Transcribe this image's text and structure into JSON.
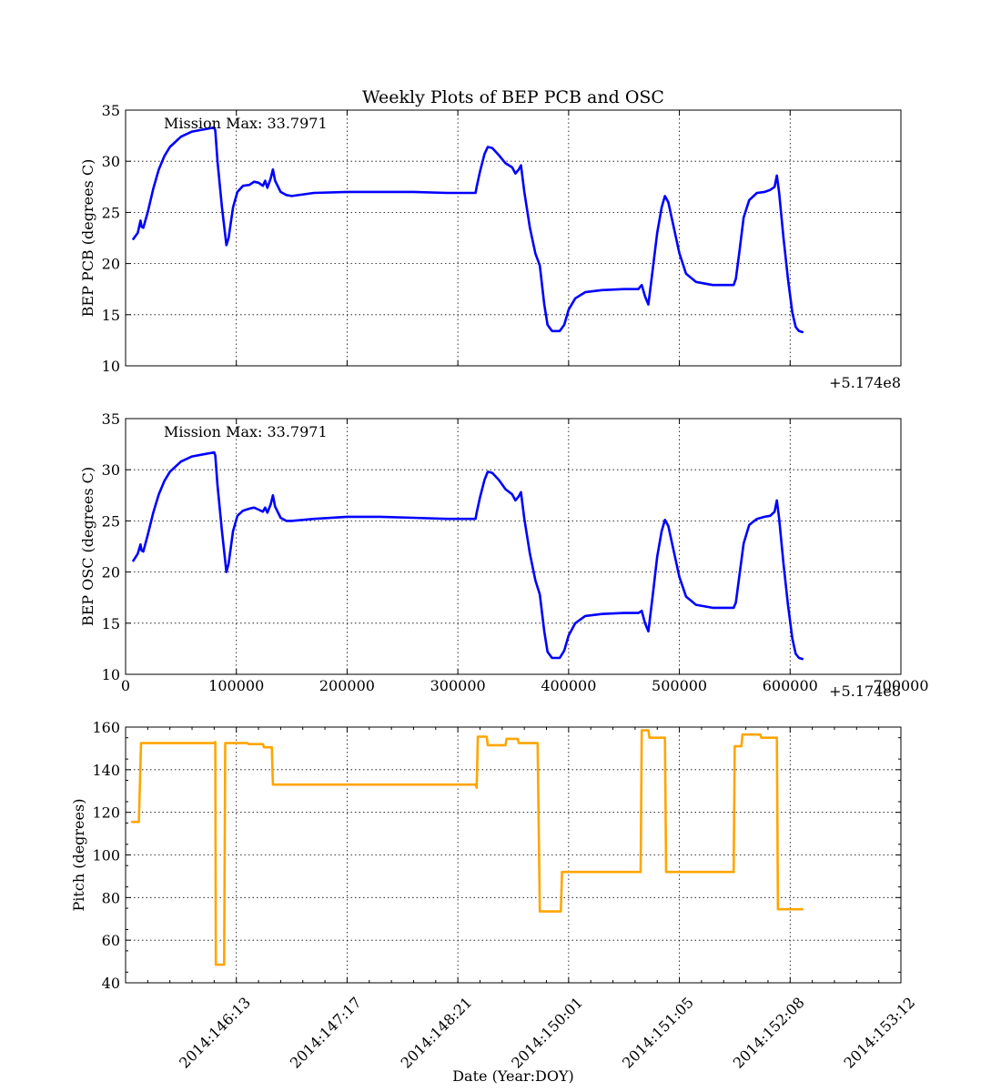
{
  "title": "Weekly Plots of BEP PCB and OSC",
  "chart_data": [
    {
      "type": "line",
      "ylabel": "BEP PCB (degrees C)",
      "xlim": [
        0,
        700000
      ],
      "ylim": [
        10,
        35
      ],
      "yticks": [
        10,
        15,
        20,
        25,
        30,
        35
      ],
      "xticks": [
        100000,
        200000,
        300000,
        400000,
        500000,
        600000
      ],
      "xtick_labels_shown": false,
      "offset_label": "+5.174e8",
      "annotation": "Mission Max: 33.7971",
      "grid": true,
      "color": "#0000ff",
      "series": [
        {
          "points": [
            [
              7000,
              22.4
            ],
            [
              11000,
              23.0
            ],
            [
              13500,
              24.2
            ],
            [
              14500,
              23.6
            ],
            [
              16000,
              23.5
            ],
            [
              20000,
              25.0
            ],
            [
              25000,
              27.3
            ],
            [
              30000,
              29.2
            ],
            [
              35000,
              30.5
            ],
            [
              40000,
              31.4
            ],
            [
              50000,
              32.4
            ],
            [
              60000,
              32.9
            ],
            [
              70000,
              33.1
            ],
            [
              80000,
              33.3
            ],
            [
              81000,
              33.0
            ],
            [
              83000,
              30.0
            ],
            [
              87000,
              25.5
            ],
            [
              91000,
              21.8
            ],
            [
              93000,
              22.5
            ],
            [
              97000,
              25.5
            ],
            [
              101000,
              27.0
            ],
            [
              106000,
              27.6
            ],
            [
              112000,
              27.7
            ],
            [
              116000,
              28.0
            ],
            [
              120000,
              27.9
            ],
            [
              124000,
              27.6
            ],
            [
              126000,
              28.1
            ],
            [
              128000,
              27.4
            ],
            [
              131000,
              28.3
            ],
            [
              133000,
              29.2
            ],
            [
              135000,
              28.1
            ],
            [
              140000,
              27.0
            ],
            [
              145000,
              26.7
            ],
            [
              150000,
              26.6
            ],
            [
              170000,
              26.9
            ],
            [
              200000,
              27.0
            ],
            [
              230000,
              27.0
            ],
            [
              260000,
              27.0
            ],
            [
              290000,
              26.9
            ],
            [
              316000,
              26.9
            ],
            [
              317000,
              27.5
            ],
            [
              320000,
              29.0
            ],
            [
              324000,
              30.7
            ],
            [
              327000,
              31.4
            ],
            [
              331000,
              31.3
            ],
            [
              337000,
              30.6
            ],
            [
              343000,
              29.8
            ],
            [
              349000,
              29.4
            ],
            [
              352000,
              28.8
            ],
            [
              355000,
              29.2
            ],
            [
              357000,
              29.6
            ],
            [
              360000,
              27.0
            ],
            [
              365000,
              23.5
            ],
            [
              370000,
              21.0
            ],
            [
              374000,
              19.8
            ],
            [
              378000,
              16.0
            ],
            [
              381000,
              14.0
            ],
            [
              385000,
              13.4
            ],
            [
              392000,
              13.4
            ],
            [
              396000,
              14.0
            ],
            [
              400000,
              15.5
            ],
            [
              406000,
              16.6
            ],
            [
              415000,
              17.2
            ],
            [
              430000,
              17.4
            ],
            [
              450000,
              17.5
            ],
            [
              463000,
              17.5
            ],
            [
              466000,
              17.9
            ],
            [
              469000,
              16.8
            ],
            [
              472000,
              16.0
            ],
            [
              476000,
              19.5
            ],
            [
              480000,
              23.0
            ],
            [
              484000,
              25.5
            ],
            [
              487000,
              26.6
            ],
            [
              490000,
              26.0
            ],
            [
              495000,
              23.5
            ],
            [
              500000,
              21.0
            ],
            [
              506000,
              19.0
            ],
            [
              515000,
              18.2
            ],
            [
              530000,
              17.9
            ],
            [
              549000,
              17.9
            ],
            [
              551000,
              18.5
            ],
            [
              554000,
              21.0
            ],
            [
              558000,
              24.5
            ],
            [
              563000,
              26.2
            ],
            [
              570000,
              26.9
            ],
            [
              577000,
              27.0
            ],
            [
              582000,
              27.2
            ],
            [
              586000,
              27.5
            ],
            [
              588000,
              28.6
            ],
            [
              590000,
              27.0
            ],
            [
              594000,
              22.5
            ],
            [
              598000,
              18.5
            ],
            [
              602000,
              15.2
            ],
            [
              605000,
              13.8
            ],
            [
              608000,
              13.4
            ],
            [
              611000,
              13.3
            ]
          ]
        }
      ]
    },
    {
      "type": "line",
      "ylabel": "BEP OSC (degrees C)",
      "xlim": [
        0,
        700000
      ],
      "ylim": [
        10,
        35
      ],
      "yticks": [
        10,
        15,
        20,
        25,
        30,
        35
      ],
      "xticks": [
        0,
        100000,
        200000,
        300000,
        400000,
        500000,
        600000,
        700000
      ],
      "xtick_labels": [
        "0",
        "100000",
        "200000",
        "300000",
        "400000",
        "500000",
        "600000",
        "700000"
      ],
      "offset_label": "+5.174e8",
      "annotation": "Mission Max: 33.7971",
      "grid": true,
      "color": "#0000ff",
      "series": [
        {
          "points": [
            [
              7000,
              21.1
            ],
            [
              11000,
              21.8
            ],
            [
              13500,
              22.7
            ],
            [
              14500,
              22.1
            ],
            [
              16000,
              22.0
            ],
            [
              20000,
              23.6
            ],
            [
              25000,
              25.8
            ],
            [
              30000,
              27.6
            ],
            [
              35000,
              28.9
            ],
            [
              40000,
              29.8
            ],
            [
              50000,
              30.8
            ],
            [
              60000,
              31.3
            ],
            [
              70000,
              31.5
            ],
            [
              80000,
              31.7
            ],
            [
              81000,
              31.4
            ],
            [
              83000,
              28.5
            ],
            [
              87000,
              24.0
            ],
            [
              91000,
              20.0
            ],
            [
              93000,
              20.8
            ],
            [
              97000,
              24.0
            ],
            [
              101000,
              25.5
            ],
            [
              106000,
              26.0
            ],
            [
              112000,
              26.2
            ],
            [
              116000,
              26.3
            ],
            [
              120000,
              26.1
            ],
            [
              124000,
              25.9
            ],
            [
              126000,
              26.3
            ],
            [
              128000,
              25.8
            ],
            [
              131000,
              26.6
            ],
            [
              133000,
              27.5
            ],
            [
              135000,
              26.4
            ],
            [
              140000,
              25.3
            ],
            [
              145000,
              25.0
            ],
            [
              150000,
              25.0
            ],
            [
              170000,
              25.2
            ],
            [
              200000,
              25.4
            ],
            [
              230000,
              25.4
            ],
            [
              260000,
              25.3
            ],
            [
              290000,
              25.2
            ],
            [
              316000,
              25.2
            ],
            [
              317000,
              25.8
            ],
            [
              320000,
              27.3
            ],
            [
              324000,
              29.0
            ],
            [
              327000,
              29.8
            ],
            [
              331000,
              29.7
            ],
            [
              337000,
              29.0
            ],
            [
              343000,
              28.1
            ],
            [
              349000,
              27.6
            ],
            [
              352000,
              27.0
            ],
            [
              355000,
              27.4
            ],
            [
              357000,
              27.8
            ],
            [
              360000,
              25.2
            ],
            [
              365000,
              21.8
            ],
            [
              370000,
              19.2
            ],
            [
              374000,
              17.8
            ],
            [
              378000,
              14.2
            ],
            [
              381000,
              12.2
            ],
            [
              385000,
              11.6
            ],
            [
              392000,
              11.6
            ],
            [
              396000,
              12.3
            ],
            [
              400000,
              13.8
            ],
            [
              406000,
              15.0
            ],
            [
              415000,
              15.7
            ],
            [
              430000,
              15.9
            ],
            [
              450000,
              16.0
            ],
            [
              463000,
              16.0
            ],
            [
              466000,
              16.2
            ],
            [
              469000,
              15.0
            ],
            [
              472000,
              14.2
            ],
            [
              476000,
              17.8
            ],
            [
              480000,
              21.5
            ],
            [
              484000,
              24.0
            ],
            [
              487000,
              25.1
            ],
            [
              490000,
              24.5
            ],
            [
              495000,
              22.0
            ],
            [
              500000,
              19.5
            ],
            [
              506000,
              17.6
            ],
            [
              515000,
              16.8
            ],
            [
              530000,
              16.5
            ],
            [
              549000,
              16.5
            ],
            [
              551000,
              17.0
            ],
            [
              554000,
              19.5
            ],
            [
              558000,
              22.8
            ],
            [
              563000,
              24.6
            ],
            [
              570000,
              25.2
            ],
            [
              577000,
              25.4
            ],
            [
              582000,
              25.5
            ],
            [
              586000,
              25.9
            ],
            [
              588000,
              27.0
            ],
            [
              590000,
              25.3
            ],
            [
              594000,
              20.8
            ],
            [
              598000,
              16.8
            ],
            [
              602000,
              13.5
            ],
            [
              605000,
              12.0
            ],
            [
              608000,
              11.6
            ],
            [
              611000,
              11.5
            ]
          ]
        }
      ]
    },
    {
      "type": "line",
      "ylabel": "Pitch (degrees)",
      "xlabel": "Date (Year:DOY)",
      "xlim": [
        0,
        700000
      ],
      "ylim": [
        40,
        160
      ],
      "yticks": [
        40,
        60,
        80,
        100,
        120,
        140,
        160
      ],
      "xticks": [
        100000,
        200000,
        300000,
        400000,
        500000,
        600000,
        700000
      ],
      "xtick_labels": [
        "2014:146:13",
        "2014:147:17",
        "2014:148:21",
        "2014:150:01",
        "2014:151:05",
        "2014:152:08",
        "2014:153:12"
      ],
      "grid": true,
      "color": "#ffa500",
      "series": [
        {
          "points": [
            [
              6000,
              115.5
            ],
            [
              12000,
              115.5
            ],
            [
              14000,
              152.5
            ],
            [
              80000,
              152.5
            ],
            [
              81000,
              153.0
            ],
            [
              81500,
              48.5
            ],
            [
              89000,
              48.5
            ],
            [
              90000,
              152.5
            ],
            [
              110000,
              152.5
            ],
            [
              111000,
              152.0
            ],
            [
              124000,
              152.0
            ],
            [
              125000,
              150.5
            ],
            [
              132000,
              150.5
            ],
            [
              133000,
              133.0
            ],
            [
              316000,
              133.0
            ],
            [
              317000,
              131.5
            ],
            [
              318000,
              155.5
            ],
            [
              326000,
              155.5
            ],
            [
              327000,
              151.5
            ],
            [
              343000,
              151.5
            ],
            [
              344000,
              154.5
            ],
            [
              354000,
              154.5
            ],
            [
              355000,
              152.5
            ],
            [
              372000,
              152.5
            ],
            [
              374000,
              73.5
            ],
            [
              393000,
              73.5
            ],
            [
              394000,
              92.0
            ],
            [
              465000,
              92.0
            ],
            [
              466000,
              158.5
            ],
            [
              472000,
              158.5
            ],
            [
              473000,
              155.0
            ],
            [
              487000,
              155.0
            ],
            [
              488000,
              92.0
            ],
            [
              549000,
              92.0
            ],
            [
              550000,
              151.0
            ],
            [
              556000,
              151.0
            ],
            [
              557000,
              156.5
            ],
            [
              573000,
              156.5
            ],
            [
              574000,
              155.0
            ],
            [
              588000,
              155.0
            ],
            [
              589000,
              74.5
            ],
            [
              611000,
              74.5
            ]
          ]
        }
      ]
    }
  ]
}
